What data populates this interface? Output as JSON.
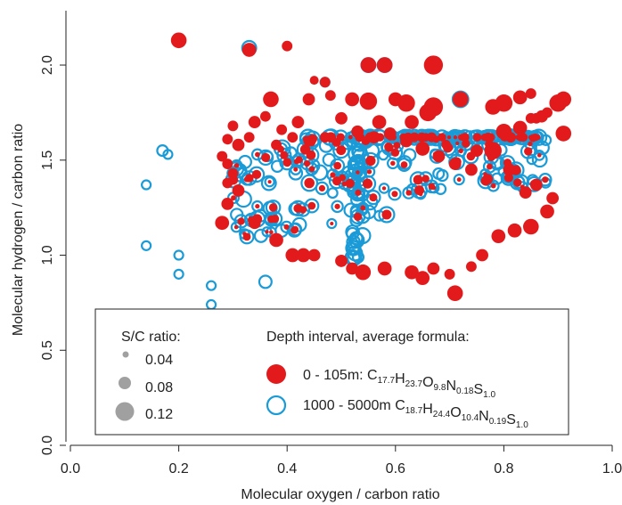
{
  "chart_data": {
    "type": "scatter",
    "xlabel": "Molecular oxygen / carbon ratio",
    "ylabel": "Molecular hydrogen / carbon ratio",
    "xlim": [
      0.0,
      1.0
    ],
    "ylim": [
      0.0,
      2.3
    ],
    "x_ticks": [
      "0.0",
      "0.2",
      "0.4",
      "0.6",
      "0.8",
      "1.0"
    ],
    "y_ticks": [
      "0.0",
      "0.5",
      "1.0",
      "1.5",
      "2.0"
    ],
    "grid": false,
    "legend_size": {
      "title": "S/C ratio:",
      "entries": [
        "0.04",
        "0.08",
        "0.12"
      ],
      "color": "#a0a0a0"
    },
    "legend_depth": {
      "title": "Depth interval, average formula:",
      "entries": [
        {
          "label_main": "0 - 105m: ",
          "formula": [
            {
              "el": "C",
              "n": "17.7"
            },
            {
              "el": "H",
              "n": "23.7"
            },
            {
              "el": "O",
              "n": "9.8"
            },
            {
              "el": "N",
              "n": "0.18"
            },
            {
              "el": "S",
              "n": "1.0"
            }
          ],
          "color": "#e31a1c",
          "style": "filled"
        },
        {
          "label_main": "1000 - 5000m ",
          "formula": [
            {
              "el": "C",
              "n": "18.7"
            },
            {
              "el": "H",
              "n": "24.4"
            },
            {
              "el": "O",
              "n": "10.4"
            },
            {
              "el": "N",
              "n": "0.19"
            },
            {
              "el": "S",
              "n": "1.0"
            }
          ],
          "color": "#1a9bd7",
          "style": "open"
        }
      ]
    },
    "series": [
      {
        "name": "0 - 105m",
        "color": "#e31a1c",
        "points": [
          [
            0.2,
            2.13,
            0.08
          ],
          [
            0.33,
            2.08,
            0.07
          ],
          [
            0.4,
            2.1,
            0.05
          ],
          [
            0.55,
            2.0,
            0.08
          ],
          [
            0.58,
            2.0,
            0.08
          ],
          [
            0.67,
            2.0,
            0.1
          ],
          [
            0.45,
            1.92,
            0.04
          ],
          [
            0.47,
            1.91,
            0.05
          ],
          [
            0.37,
            1.82,
            0.08
          ],
          [
            0.44,
            1.82,
            0.06
          ],
          [
            0.48,
            1.84,
            0.05
          ],
          [
            0.52,
            1.82,
            0.07
          ],
          [
            0.55,
            1.81,
            0.09
          ],
          [
            0.6,
            1.82,
            0.07
          ],
          [
            0.62,
            1.8,
            0.09
          ],
          [
            0.67,
            1.78,
            0.1
          ],
          [
            0.72,
            1.82,
            0.08
          ],
          [
            0.78,
            1.78,
            0.08
          ],
          [
            0.8,
            1.8,
            0.09
          ],
          [
            0.83,
            1.83,
            0.07
          ],
          [
            0.85,
            1.85,
            0.05
          ],
          [
            0.9,
            1.8,
            0.09
          ],
          [
            0.91,
            1.82,
            0.08
          ],
          [
            0.88,
            1.75,
            0.05
          ],
          [
            0.87,
            1.73,
            0.06
          ],
          [
            0.86,
            1.72,
            0.05
          ],
          [
            0.8,
            1.65,
            0.08
          ],
          [
            0.85,
            1.72,
            0.05
          ],
          [
            0.91,
            1.64,
            0.08
          ],
          [
            0.78,
            1.55,
            0.09
          ],
          [
            0.83,
            1.67,
            0.07
          ],
          [
            0.75,
            1.55,
            0.06
          ],
          [
            0.66,
            1.75,
            0.09
          ],
          [
            0.63,
            1.7,
            0.07
          ],
          [
            0.57,
            1.7,
            0.07
          ],
          [
            0.34,
            1.7,
            0.06
          ],
          [
            0.36,
            1.73,
            0.05
          ],
          [
            0.3,
            1.68,
            0.05
          ],
          [
            0.39,
            1.66,
            0.05
          ],
          [
            0.42,
            1.7,
            0.06
          ],
          [
            0.5,
            1.72,
            0.06
          ],
          [
            0.29,
            1.61,
            0.05
          ],
          [
            0.31,
            1.58,
            0.06
          ],
          [
            0.33,
            1.62,
            0.05
          ],
          [
            0.28,
            1.52,
            0.05
          ],
          [
            0.29,
            1.48,
            0.05
          ],
          [
            0.3,
            1.43,
            0.05
          ],
          [
            0.29,
            1.38,
            0.05
          ],
          [
            0.31,
            1.34,
            0.06
          ],
          [
            0.29,
            1.27,
            0.06
          ],
          [
            0.28,
            1.17,
            0.07
          ],
          [
            0.34,
            1.17,
            0.06
          ],
          [
            0.38,
            1.08,
            0.07
          ],
          [
            0.41,
            1.0,
            0.07
          ],
          [
            0.43,
            1.0,
            0.07
          ],
          [
            0.45,
            1.0,
            0.06
          ],
          [
            0.5,
            0.97,
            0.06
          ],
          [
            0.52,
            0.93,
            0.06
          ],
          [
            0.54,
            0.91,
            0.08
          ],
          [
            0.58,
            0.93,
            0.07
          ],
          [
            0.63,
            0.91,
            0.07
          ],
          [
            0.65,
            0.88,
            0.07
          ],
          [
            0.67,
            0.93,
            0.06
          ],
          [
            0.7,
            0.9,
            0.05
          ],
          [
            0.71,
            0.8,
            0.08
          ],
          [
            0.74,
            0.94,
            0.05
          ],
          [
            0.76,
            1.0,
            0.06
          ],
          [
            0.79,
            1.1,
            0.07
          ],
          [
            0.82,
            1.13,
            0.07
          ],
          [
            0.85,
            1.15,
            0.08
          ],
          [
            0.88,
            1.23,
            0.07
          ],
          [
            0.89,
            1.3,
            0.06
          ],
          [
            0.86,
            1.37,
            0.06
          ],
          [
            0.84,
            1.33,
            0.06
          ],
          [
            0.81,
            1.45,
            0.06
          ],
          [
            0.77,
            1.4,
            0.05
          ],
          [
            0.74,
            1.45,
            0.06
          ],
          [
            0.71,
            1.48,
            0.06
          ],
          [
            0.68,
            1.52,
            0.06
          ],
          [
            0.65,
            1.56,
            0.07
          ],
          [
            0.62,
            1.6,
            0.06
          ],
          [
            0.59,
            1.64,
            0.06
          ],
          [
            0.56,
            1.62,
            0.06
          ],
          [
            0.53,
            1.65,
            0.06
          ],
          [
            0.47,
            1.62,
            0.05
          ],
          [
            0.44,
            1.6,
            0.05
          ],
          [
            0.41,
            1.62,
            0.05
          ],
          [
            0.38,
            1.58,
            0.05
          ]
        ]
      },
      {
        "name": "1000 - 5000m",
        "color": "#1a9bd7",
        "points": [
          [
            0.33,
            2.09,
            0.07
          ],
          [
            0.55,
            2.0,
            0.07
          ],
          [
            0.58,
            2.0,
            0.07
          ],
          [
            0.47,
            1.91,
            0.04
          ],
          [
            0.72,
            1.82,
            0.08
          ],
          [
            0.17,
            1.55,
            0.05
          ],
          [
            0.18,
            1.53,
            0.04
          ],
          [
            0.14,
            1.37,
            0.04
          ],
          [
            0.14,
            1.05,
            0.04
          ],
          [
            0.2,
            1.0,
            0.04
          ],
          [
            0.2,
            0.9,
            0.04
          ],
          [
            0.26,
            0.84,
            0.04
          ],
          [
            0.26,
            0.74,
            0.04
          ],
          [
            0.36,
            0.86,
            0.06
          ]
        ]
      }
    ]
  }
}
